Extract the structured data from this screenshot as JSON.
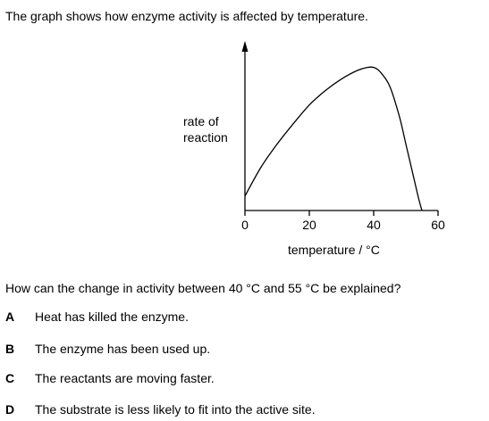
{
  "intro": "The graph shows how enzyme activity is affected by temperature.",
  "chart_data": {
    "type": "line",
    "title": "",
    "ylabel": "rate of reaction",
    "ylabel_lines": [
      "rate of",
      "reaction"
    ],
    "xlabel": "temperature / °C",
    "xticks": [
      "0",
      "20",
      "40",
      "60"
    ],
    "xlim": [
      0,
      60
    ],
    "grid": false,
    "series": [
      {
        "x": [
          0,
          5,
          10,
          15,
          20,
          25,
          30,
          35,
          38,
          40,
          42,
          45,
          48,
          50,
          52,
          54,
          55
        ],
        "y": [
          0.1,
          0.3,
          0.46,
          0.6,
          0.73,
          0.83,
          0.91,
          0.97,
          0.99,
          0.99,
          0.96,
          0.86,
          0.65,
          0.46,
          0.27,
          0.08,
          0.0
        ]
      }
    ]
  },
  "question": "How can the change in activity between 40 °C and 55 °C be explained?",
  "options": [
    {
      "letter": "A",
      "text": "Heat has killed the enzyme."
    },
    {
      "letter": "B",
      "text": "The enzyme has been used up."
    },
    {
      "letter": "C",
      "text": "The reactants are moving faster."
    },
    {
      "letter": "D",
      "text": "The substrate is less likely to fit into the active site."
    }
  ]
}
